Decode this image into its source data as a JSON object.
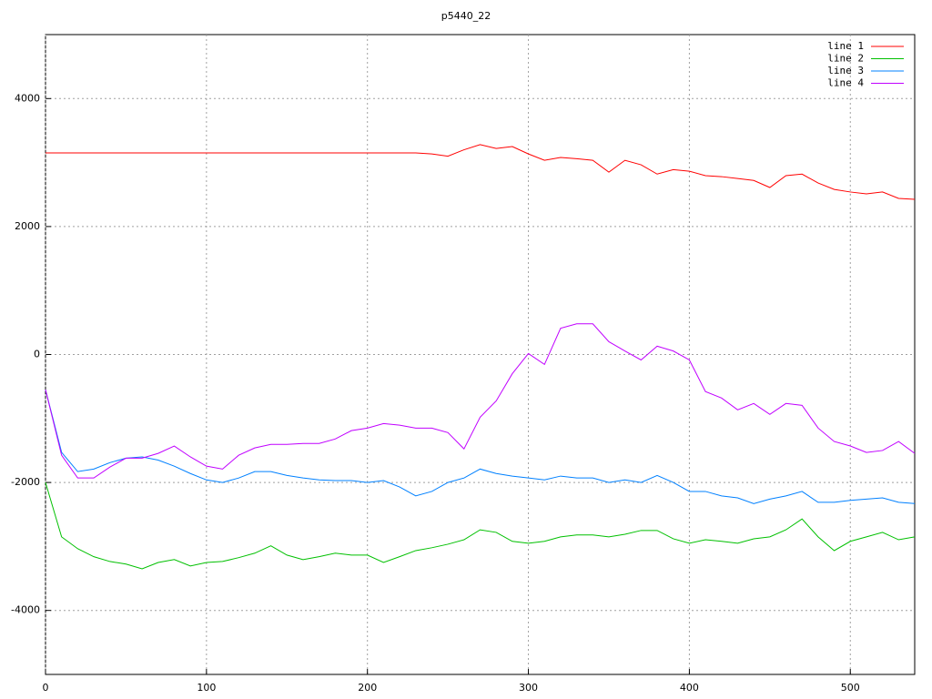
{
  "chart_data": {
    "type": "line",
    "title": "p5440_22",
    "x": [
      0,
      10,
      20,
      30,
      40,
      50,
      60,
      70,
      80,
      90,
      100,
      110,
      120,
      130,
      140,
      150,
      160,
      170,
      180,
      190,
      200,
      210,
      220,
      230,
      240,
      250,
      260,
      270,
      280,
      290,
      300,
      310,
      320,
      330,
      340,
      350,
      360,
      370,
      380,
      390,
      400,
      410,
      420,
      430,
      440,
      450,
      460,
      470,
      480,
      490,
      500,
      510,
      520,
      530,
      540
    ],
    "series": [
      {
        "name": "line 1",
        "color": "#ff0000",
        "values": [
          3150,
          3150,
          3150,
          3150,
          3150,
          3150,
          3150,
          3150,
          3150,
          3150,
          3150,
          3150,
          3150,
          3150,
          3150,
          3150,
          3150,
          3150,
          3150,
          3150,
          3150,
          3150,
          3150,
          3150,
          3135,
          3100,
          3200,
          3280,
          3220,
          3250,
          3135,
          3035,
          3080,
          3060,
          3035,
          2850,
          3035,
          2965,
          2820,
          2890,
          2865,
          2795,
          2780,
          2750,
          2720,
          2610,
          2795,
          2820,
          2680,
          2580,
          2540,
          2510,
          2540,
          2440,
          2425
        ]
      },
      {
        "name": "line 2",
        "color": "#00c000",
        "values": [
          -2000,
          -2850,
          -3035,
          -3160,
          -3235,
          -3275,
          -3350,
          -3250,
          -3205,
          -3305,
          -3250,
          -3235,
          -3175,
          -3105,
          -2990,
          -3135,
          -3205,
          -3160,
          -3105,
          -3135,
          -3135,
          -3250,
          -3160,
          -3065,
          -3020,
          -2965,
          -2895,
          -2740,
          -2780,
          -2920,
          -2950,
          -2920,
          -2850,
          -2820,
          -2820,
          -2850,
          -2810,
          -2750,
          -2750,
          -2880,
          -2950,
          -2895,
          -2920,
          -2950,
          -2880,
          -2850,
          -2740,
          -2570,
          -2850,
          -3065,
          -2920,
          -2850,
          -2780,
          -2895,
          -2850
        ]
      },
      {
        "name": "line 3",
        "color": "#0080ff",
        "values": [
          -550,
          -1530,
          -1830,
          -1790,
          -1690,
          -1620,
          -1600,
          -1650,
          -1745,
          -1860,
          -1960,
          -2000,
          -1930,
          -1830,
          -1830,
          -1890,
          -1930,
          -1960,
          -1970,
          -1970,
          -2000,
          -1970,
          -2070,
          -2210,
          -2140,
          -2000,
          -1930,
          -1790,
          -1860,
          -1900,
          -1930,
          -1960,
          -1900,
          -1930,
          -1930,
          -2000,
          -1960,
          -2000,
          -1890,
          -2000,
          -2140,
          -2140,
          -2210,
          -2240,
          -2330,
          -2260,
          -2210,
          -2140,
          -2310,
          -2310,
          -2280,
          -2260,
          -2240,
          -2310,
          -2330
        ]
      },
      {
        "name": "line 4",
        "color": "#c000ff",
        "values": [
          -550,
          -1575,
          -1930,
          -1930,
          -1760,
          -1620,
          -1620,
          -1545,
          -1430,
          -1600,
          -1745,
          -1790,
          -1575,
          -1460,
          -1405,
          -1405,
          -1390,
          -1390,
          -1320,
          -1190,
          -1150,
          -1080,
          -1105,
          -1150,
          -1150,
          -1220,
          -1475,
          -980,
          -725,
          -300,
          15,
          -155,
          410,
          480,
          480,
          200,
          55,
          -85,
          130,
          55,
          -85,
          -580,
          -680,
          -865,
          -765,
          -935,
          -765,
          -795,
          -1150,
          -1360,
          -1430,
          -1530,
          -1500,
          -1360,
          -1545
        ]
      }
    ],
    "xlim": [
      0,
      540
    ],
    "ylim": [
      -5000,
      5000
    ],
    "xticks": [
      0,
      100,
      200,
      300,
      400,
      500
    ],
    "yticks": [
      -4000,
      -2000,
      0,
      2000,
      4000
    ],
    "grid": true,
    "legend": "top-right"
  }
}
